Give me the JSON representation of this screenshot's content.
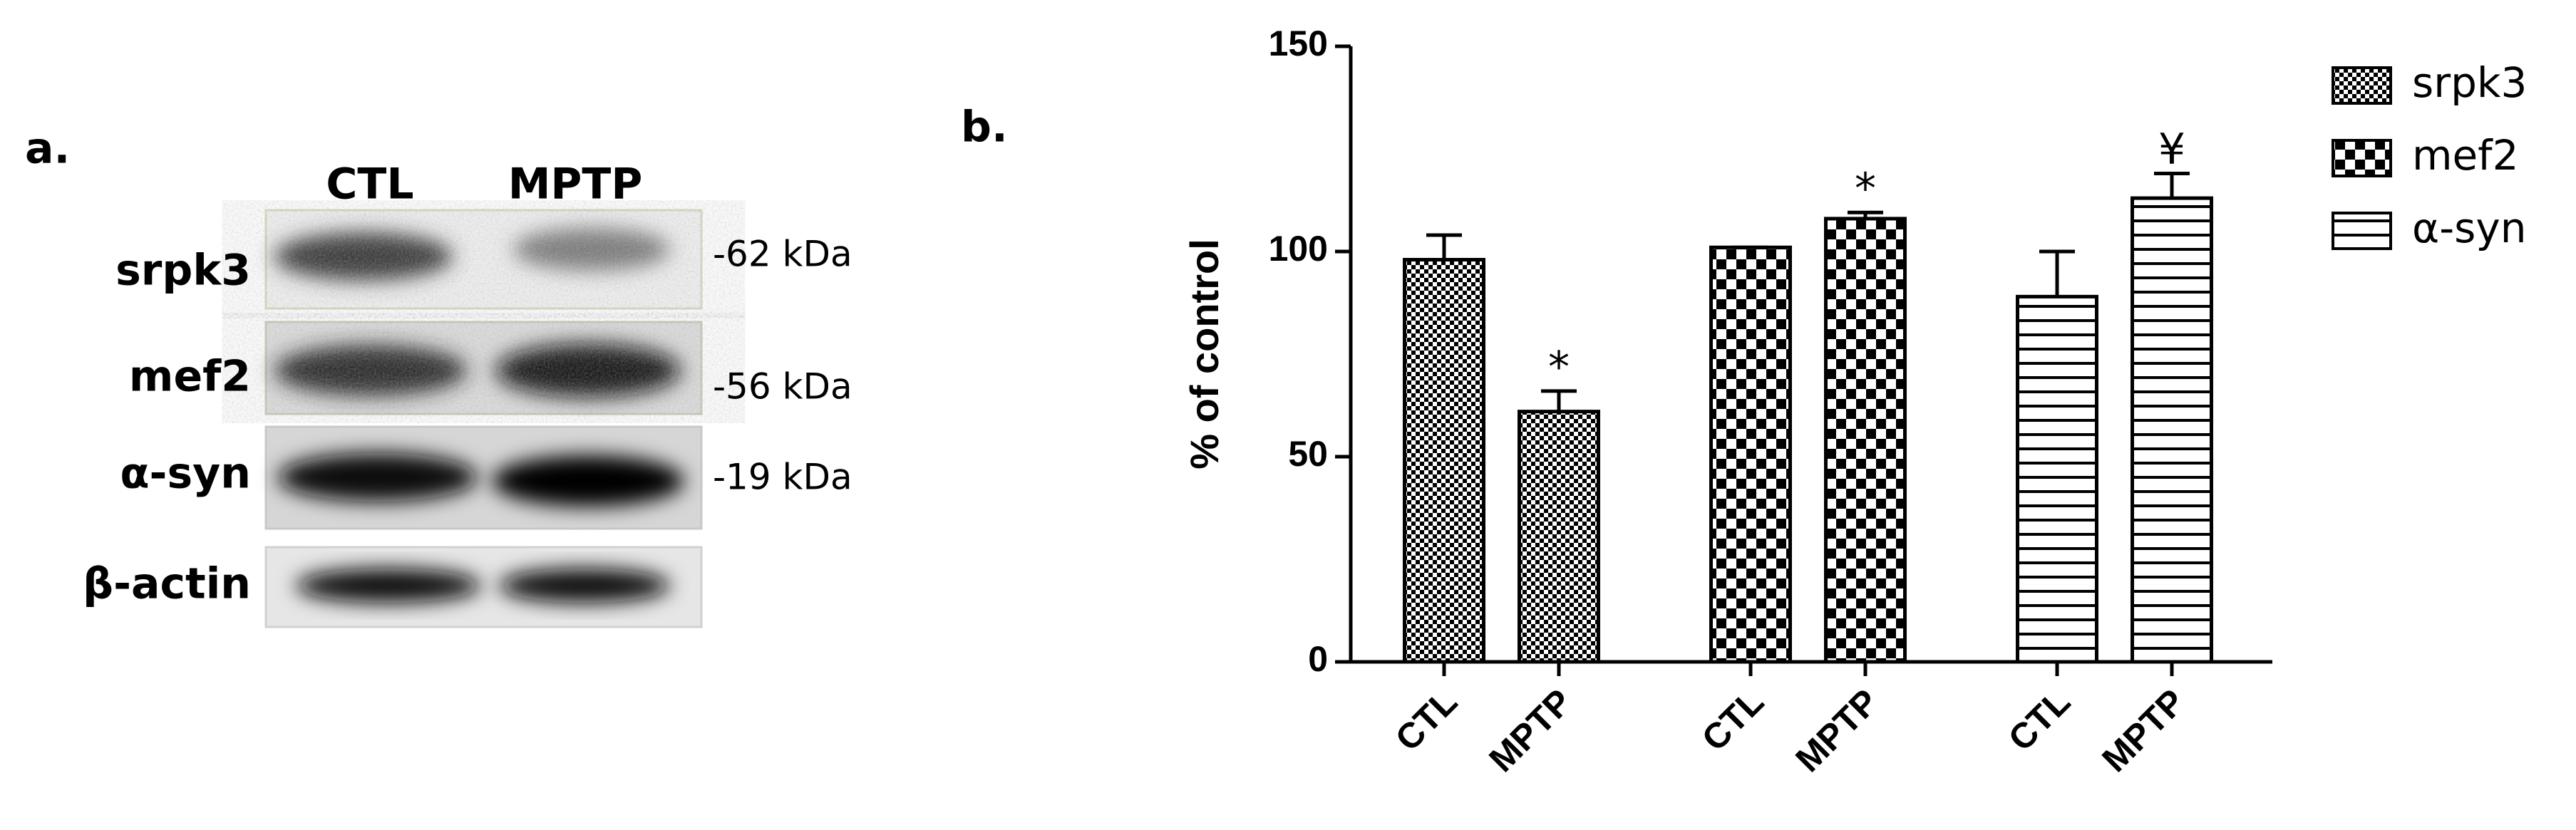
{
  "panel_a": {
    "label": "a.",
    "columns": [
      "CTL",
      "MPTP"
    ],
    "rows": [
      {
        "label": "srpk3",
        "size": "-62 kDa"
      },
      {
        "label": "mef2",
        "size": "-56 kDa"
      },
      {
        "label": "α-syn",
        "size": "-19 kDa"
      },
      {
        "label": "β-actin"
      }
    ]
  },
  "chart_data": {
    "type": "bar",
    "panel_label": "b.",
    "y_label": "% of control",
    "categories": [
      "CTL",
      "MPTP"
    ],
    "series": [
      {
        "name": "srpk3",
        "color": "#000000",
        "pattern": "fine-check",
        "values": [
          98,
          61
        ],
        "errors": [
          6,
          5
        ],
        "annotations": [
          null,
          "*"
        ]
      },
      {
        "name": "mef2",
        "color": "#000000",
        "pattern": "check",
        "values": [
          101,
          108
        ],
        "errors": [
          0,
          1.5
        ],
        "annotations": [
          null,
          "*"
        ]
      },
      {
        "name": "α-syn",
        "color": "#000000",
        "pattern": "hlines",
        "values": [
          89,
          113
        ],
        "errors": [
          11,
          6
        ],
        "annotations": [
          null,
          "¥"
        ]
      }
    ],
    "ylim": [
      0,
      150
    ],
    "yticks": [
      0,
      50,
      100,
      150
    ],
    "legend": "top-right"
  }
}
